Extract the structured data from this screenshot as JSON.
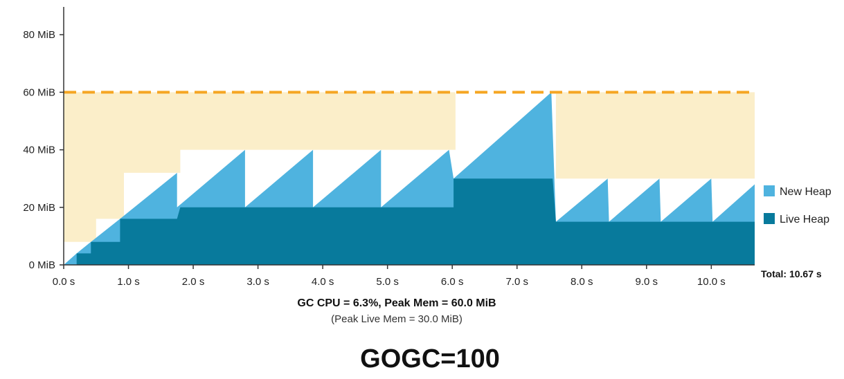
{
  "chart_data": {
    "type": "area",
    "y_ticks": [
      {
        "value": 0,
        "label": "0 MiB"
      },
      {
        "value": 20,
        "label": "20 MiB"
      },
      {
        "value": 40,
        "label": "40 MiB"
      },
      {
        "value": 60,
        "label": "60 MiB"
      },
      {
        "value": 80,
        "label": "80 MiB"
      }
    ],
    "x_ticks": [
      {
        "value": 0,
        "label": "0.0 s"
      },
      {
        "value": 1,
        "label": "1.0 s"
      },
      {
        "value": 2,
        "label": "2.0 s"
      },
      {
        "value": 3,
        "label": "3.0 s"
      },
      {
        "value": 4,
        "label": "4.0 s"
      },
      {
        "value": 5,
        "label": "5.0 s"
      },
      {
        "value": 6,
        "label": "6.0 s"
      },
      {
        "value": 7,
        "label": "7.0 s"
      },
      {
        "value": 8,
        "label": "8.0 s"
      },
      {
        "value": 9,
        "label": "9.0 s"
      },
      {
        "value": 10,
        "label": "10.0 s"
      }
    ],
    "xlim": [
      0,
      10.67
    ],
    "ylim": [
      0,
      90
    ],
    "total_label": "Total: 10.67 s",
    "memory_limit": 60,
    "colors": {
      "new_heap": "#4fb3df",
      "live_heap": "#087a9c",
      "limit_region": "#fbeec9",
      "limit_line": "#f5a623"
    },
    "legend": [
      {
        "name": "New Heap",
        "color": "#4fb3df"
      },
      {
        "name": "Live Heap",
        "color": "#087a9c"
      }
    ],
    "series": [
      {
        "name": "Total Heap",
        "points": [
          [
            0,
            0
          ],
          [
            0.2,
            4
          ],
          [
            0.2,
            4
          ],
          [
            0.42,
            8
          ],
          [
            0.42,
            8
          ],
          [
            0.87,
            16
          ],
          [
            0.87,
            16
          ],
          [
            1.75,
            32
          ],
          [
            1.75,
            20
          ],
          [
            2.8,
            40
          ],
          [
            2.8,
            20
          ],
          [
            3.85,
            40
          ],
          [
            3.85,
            20
          ],
          [
            4.9,
            40
          ],
          [
            4.9,
            20
          ],
          [
            5.95,
            40
          ],
          [
            6.02,
            30
          ],
          [
            7.53,
            60
          ],
          [
            7.6,
            15
          ],
          [
            8.4,
            30
          ],
          [
            8.42,
            15
          ],
          [
            9.2,
            30
          ],
          [
            9.22,
            15
          ],
          [
            10.0,
            30
          ],
          [
            10.02,
            15
          ],
          [
            10.67,
            28
          ],
          [
            10.67,
            0
          ]
        ]
      },
      {
        "name": "Live Heap",
        "points": [
          [
            0,
            0
          ],
          [
            0.2,
            0
          ],
          [
            0.2,
            4
          ],
          [
            0.42,
            4
          ],
          [
            0.42,
            8
          ],
          [
            0.87,
            8
          ],
          [
            0.87,
            16
          ],
          [
            1.75,
            16
          ],
          [
            1.8,
            20
          ],
          [
            6.02,
            20
          ],
          [
            6.02,
            30
          ],
          [
            7.55,
            30
          ],
          [
            7.6,
            15
          ],
          [
            10.67,
            15
          ],
          [
            10.67,
            0
          ]
        ]
      },
      {
        "name": "Heap Goal",
        "points": [
          [
            0,
            8
          ],
          [
            0.5,
            8
          ],
          [
            0.5,
            16
          ],
          [
            0.93,
            16
          ],
          [
            0.93,
            32
          ],
          [
            1.8,
            32
          ],
          [
            1.8,
            40
          ],
          [
            6.05,
            40
          ],
          [
            6.05,
            60
          ],
          [
            7.6,
            60
          ],
          [
            7.6,
            30
          ],
          [
            10.67,
            30
          ]
        ]
      }
    ]
  },
  "summary": {
    "line1": "GC CPU = 6.3%, Peak Mem = 60.0 MiB",
    "line2": "(Peak Live Mem = 30.0 MiB)"
  },
  "caption": "GOGC=100"
}
